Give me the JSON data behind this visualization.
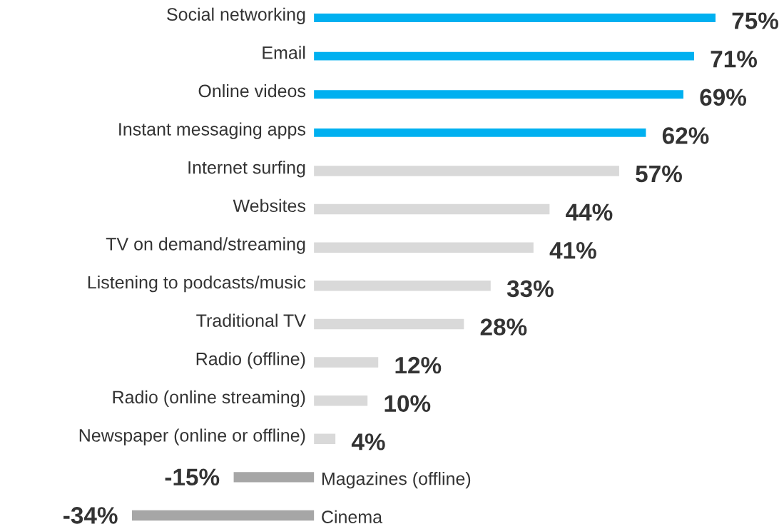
{
  "chart_data": {
    "type": "bar",
    "orientation": "horizontal",
    "categories": [
      "Social networking",
      "Email",
      "Online videos",
      "Instant messaging apps",
      "Internet surfing",
      "Websites",
      "TV on demand/streaming",
      "Listening to podcasts/music",
      "Traditional TV",
      "Radio (offline)",
      "Radio (online streaming)",
      "Newspaper (online or offline)",
      "Magazines (offline)",
      "Cinema"
    ],
    "values": [
      75,
      71,
      69,
      62,
      57,
      44,
      41,
      33,
      28,
      12,
      10,
      4,
      -15,
      -34
    ],
    "value_labels": [
      "75%",
      "71%",
      "69%",
      "62%",
      "57%",
      "44%",
      "41%",
      "33%",
      "28%",
      "12%",
      "10%",
      "4%",
      "-15%",
      "-34%"
    ],
    "colors": [
      "#00b0f0",
      "#00b0f0",
      "#00b0f0",
      "#00b0f0",
      "#d9d9d9",
      "#d9d9d9",
      "#d9d9d9",
      "#d9d9d9",
      "#d9d9d9",
      "#d9d9d9",
      "#d9d9d9",
      "#d9d9d9",
      "#a6a6a6",
      "#a6a6a6"
    ]
  }
}
